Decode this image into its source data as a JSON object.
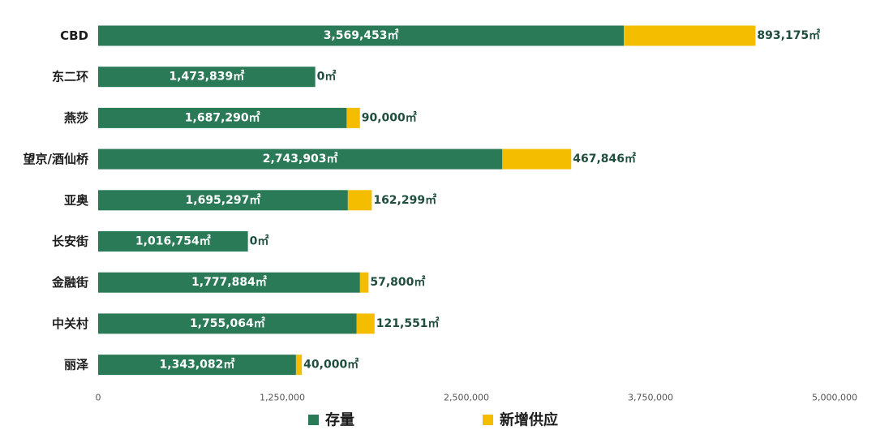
{
  "chart_data": {
    "type": "bar",
    "orientation": "horizontal",
    "stacked": true,
    "categories": [
      "CBD",
      "东二环",
      "燕莎",
      "望京/酒仙桥",
      "亚奥",
      "长安街",
      "金融街",
      "中关村",
      "丽泽"
    ],
    "series": [
      {
        "name": "存量",
        "color": "#2a7a57",
        "values": [
          3569453,
          1473839,
          1687290,
          2743903,
          1695297,
          1016754,
          1777884,
          1755064,
          1343082
        ],
        "labels": [
          "3,569,453㎡",
          "1,473,839㎡",
          "1,687,290㎡",
          "2,743,903㎡",
          "1,695,297㎡",
          "1,016,754㎡",
          "1,777,884㎡",
          "1,755,064㎡",
          "1,343,082㎡"
        ]
      },
      {
        "name": "新增供应",
        "color": "#f5bd00",
        "values": [
          893175,
          0,
          90000,
          467846,
          162299,
          0,
          57800,
          121551,
          40000
        ],
        "labels": [
          "893,175㎡",
          "0㎡",
          "90,000㎡",
          "467,846㎡",
          "162,299㎡",
          "0㎡",
          "57,800㎡",
          "121,551㎡",
          "40,000㎡"
        ]
      }
    ],
    "xlim": [
      0,
      5000000
    ],
    "xticks": [
      0,
      1250000,
      2500000,
      3750000,
      5000000
    ],
    "xtick_labels": [
      "0",
      "1,250,000",
      "2,500,000",
      "3,750,000",
      "5,000,000"
    ],
    "grid": false,
    "legend_position": "bottom"
  }
}
